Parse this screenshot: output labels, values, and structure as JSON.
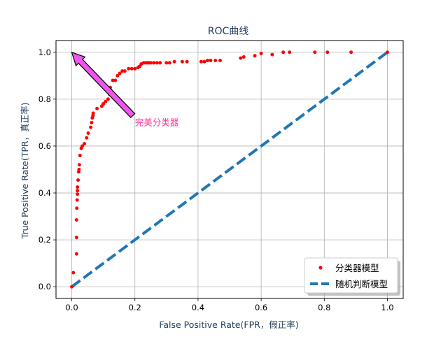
{
  "chart_data": {
    "type": "scatter",
    "title": "ROC曲线",
    "xlabel": "False Positive Rate(FPR，假正率)",
    "ylabel": "True Positive Rate(TPR，真正率)",
    "xlim": [
      -0.05,
      1.05
    ],
    "ylim": [
      -0.05,
      1.05
    ],
    "xticks": [
      0.0,
      0.2,
      0.4,
      0.6,
      0.8,
      1.0
    ],
    "yticks": [
      0.0,
      0.2,
      0.4,
      0.6,
      0.8,
      1.0
    ],
    "xtick_labels": [
      "0.0",
      "0.2",
      "0.4",
      "0.6",
      "0.8",
      "1.0"
    ],
    "ytick_labels": [
      "0.0",
      "0.2",
      "0.4",
      "0.6",
      "0.8",
      "1.0"
    ],
    "grid": true,
    "legend_position": "lower-right",
    "series": [
      {
        "name": "分类器模型",
        "type": "scatter",
        "color": "#ff0000",
        "x": [
          0.0,
          0.005,
          0.015,
          0.015,
          0.015,
          0.016,
          0.017,
          0.018,
          0.018,
          0.018,
          0.02,
          0.022,
          0.023,
          0.024,
          0.026,
          0.03,
          0.033,
          0.04,
          0.047,
          0.052,
          0.06,
          0.063,
          0.065,
          0.067,
          0.068,
          0.08,
          0.095,
          0.1,
          0.107,
          0.115,
          0.12,
          0.122,
          0.13,
          0.138,
          0.145,
          0.152,
          0.16,
          0.168,
          0.18,
          0.19,
          0.2,
          0.21,
          0.215,
          0.22,
          0.228,
          0.235,
          0.24,
          0.245,
          0.25,
          0.26,
          0.27,
          0.28,
          0.3,
          0.31,
          0.325,
          0.35,
          0.365,
          0.41,
          0.42,
          0.43,
          0.44,
          0.455,
          0.47,
          0.535,
          0.545,
          0.58,
          0.6,
          0.635,
          0.67,
          0.69,
          0.77,
          0.81,
          0.885,
          1.0
        ],
        "y": [
          0.0,
          0.06,
          0.14,
          0.21,
          0.285,
          0.335,
          0.37,
          0.395,
          0.41,
          0.425,
          0.455,
          0.49,
          0.5,
          0.52,
          0.56,
          0.59,
          0.6,
          0.61,
          0.635,
          0.655,
          0.68,
          0.7,
          0.72,
          0.73,
          0.74,
          0.76,
          0.77,
          0.78,
          0.79,
          0.8,
          0.82,
          0.85,
          0.88,
          0.88,
          0.9,
          0.91,
          0.92,
          0.92,
          0.93,
          0.93,
          0.93,
          0.935,
          0.94,
          0.95,
          0.955,
          0.955,
          0.955,
          0.955,
          0.955,
          0.955,
          0.955,
          0.955,
          0.955,
          0.955,
          0.96,
          0.96,
          0.96,
          0.96,
          0.96,
          0.965,
          0.965,
          0.965,
          0.965,
          0.975,
          0.98,
          0.985,
          0.995,
          0.99,
          1.0,
          1.0,
          1.0,
          1.0,
          1.0,
          1.0
        ]
      },
      {
        "name": "随机判断模型",
        "type": "line",
        "style": "dashed",
        "color": "#1f77b4",
        "x": [
          0.0,
          1.0
        ],
        "y": [
          0.0,
          1.0
        ]
      }
    ],
    "annotations": [
      {
        "text": "完美分类器",
        "color": "#ff3399",
        "text_x": 0.2,
        "text_y": 0.7,
        "arrow_x": 0.0,
        "arrow_y": 1.0,
        "arrow_fill": "#ee55ee"
      }
    ]
  }
}
